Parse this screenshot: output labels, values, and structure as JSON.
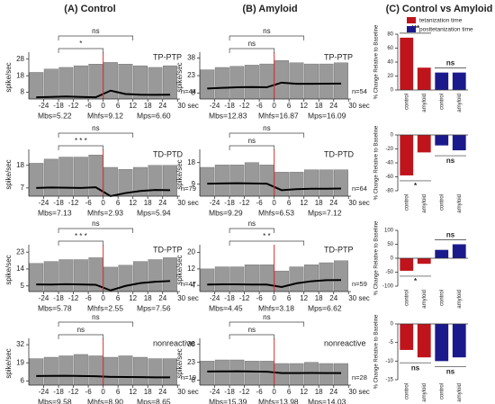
{
  "headers": [
    "(A) Control",
    "(B) Amyloid",
    "(C) Control vs Amyloid"
  ],
  "chart_data": [
    {
      "type": "histogram",
      "column": 0,
      "row": 0,
      "ylabel": "spike/sec",
      "label": "TP-PTP",
      "n": "n=44",
      "stats": [
        "Mbs=5.22",
        "Mhfs=9.12",
        "Mps=6.60"
      ],
      "bins": [
        -30,
        -24,
        -18,
        -12,
        -6,
        0,
        6,
        12,
        18,
        24,
        30
      ],
      "values": [
        20,
        22,
        23,
        24,
        25,
        26,
        25,
        24,
        23,
        24
      ],
      "mean": [
        5,
        5.2,
        5.5,
        5.2,
        5,
        9,
        7,
        6.6,
        6.5,
        6.6
      ],
      "event_x": 0,
      "xlim": [
        -30,
        31
      ],
      "ylim": [
        4,
        30
      ],
      "yticks": [
        8,
        18,
        28
      ],
      "xticks": [
        -24,
        -18,
        -12,
        -6,
        0,
        6,
        12,
        18,
        24,
        {
          "value": 30,
          "label": "30 sec"
        }
      ],
      "brackets": [
        {
          "label": "ns",
          "x": [
            -18,
            12
          ]
        },
        {
          "label": "*",
          "x": [
            -18,
            0
          ]
        }
      ]
    },
    {
      "type": "histogram",
      "column": 0,
      "row": 1,
      "ylabel": "spike/sec",
      "label": "TD-PTD",
      "n": "n=79",
      "stats": [
        "Mbs=7.13",
        "Mhfs=2.93",
        "Mps=5.94"
      ],
      "bins": [
        -30,
        -24,
        -18,
        -12,
        -6,
        0,
        6,
        12,
        18,
        24,
        30
      ],
      "values": [
        19,
        21,
        22,
        22,
        23,
        17,
        16,
        17,
        18,
        18
      ],
      "mean": [
        7,
        7.2,
        7.1,
        7,
        7.3,
        3,
        4.5,
        5.5,
        6,
        5.9
      ],
      "event_x": 0,
      "xlim": [
        -30,
        31
      ],
      "ylim": [
        3,
        24
      ],
      "yticks": [
        7,
        18
      ],
      "xticks": [
        -24,
        -18,
        -12,
        -6,
        0,
        6,
        12,
        18,
        24,
        {
          "value": 30,
          "label": "30 sec"
        }
      ],
      "brackets": [
        {
          "label": "ns",
          "x": [
            -18,
            12
          ]
        },
        {
          "label": "* * *",
          "x": [
            -18,
            0
          ]
        }
      ]
    },
    {
      "type": "histogram",
      "column": 0,
      "row": 2,
      "ylabel": "spike/sec",
      "label": "TD-PTP",
      "n": "n=47",
      "stats": [
        "Mbs=5.78",
        "Mhfs=2.55",
        "Mps=7.56"
      ],
      "bins": [
        -30,
        -24,
        -18,
        -12,
        -6,
        0,
        6,
        12,
        18,
        24,
        30
      ],
      "values": [
        17,
        18,
        19,
        19,
        20,
        15,
        16,
        18,
        19,
        20
      ],
      "mean": [
        5.8,
        5.7,
        5.9,
        5.8,
        5.6,
        2.6,
        5,
        6.5,
        7.2,
        7.6
      ],
      "event_x": 0,
      "xlim": [
        -30,
        31
      ],
      "ylim": [
        2,
        25
      ],
      "yticks": [
        5,
        14,
        23
      ],
      "xticks": [
        -24,
        -18,
        -12,
        -6,
        0,
        6,
        12,
        18,
        24,
        {
          "value": 30,
          "label": "30 sec"
        }
      ],
      "brackets": [
        {
          "label": "ns",
          "x": [
            -18,
            12
          ]
        },
        {
          "label": "* * *",
          "x": [
            -18,
            0
          ]
        }
      ]
    },
    {
      "type": "histogram",
      "column": 0,
      "row": 3,
      "ylabel": "spike/sec",
      "label": "nonreactive",
      "n": "n=19",
      "stats": [
        "Mbs=9.58",
        "Mhfs=8.90",
        "Mps=8.65"
      ],
      "bins": [
        -30,
        -24,
        -18,
        -12,
        -6,
        0,
        6,
        12,
        18,
        24,
        30
      ],
      "values": [
        22,
        23,
        24,
        25,
        24,
        23,
        24,
        23,
        22,
        22
      ],
      "mean": [
        9.5,
        9.6,
        9.7,
        9.5,
        9.4,
        8.9,
        8.8,
        8.7,
        8.6,
        8.6
      ],
      "event_x": 0,
      "xlim": [
        -30,
        31
      ],
      "ylim": [
        3,
        34
      ],
      "yticks": [
        6,
        19,
        32
      ],
      "xticks": [
        -24,
        -18,
        -12,
        -6,
        0,
        6,
        12,
        18,
        24,
        {
          "value": 30,
          "label": "30 sec"
        }
      ],
      "brackets": [
        {
          "label": "ns",
          "x": [
            -18,
            12
          ]
        },
        {
          "label": "ns",
          "x": [
            -18,
            0
          ]
        }
      ]
    },
    {
      "type": "histogram",
      "column": 1,
      "row": 0,
      "ylabel": "spike/sec",
      "label": "TP-PTP",
      "n": "n=54",
      "stats": [
        "Mbs=12.83",
        "Mhfs=16.87",
        "Mps=16.09"
      ],
      "bins": [
        -30,
        -24,
        -18,
        -12,
        -6,
        0,
        6,
        12,
        18,
        24,
        30
      ],
      "values": [
        28,
        30,
        31,
        32,
        33,
        36,
        34,
        33,
        33,
        34
      ],
      "mean": [
        12,
        12.5,
        13,
        13.2,
        13,
        17,
        16,
        16,
        16.1,
        16.2
      ],
      "event_x": 0,
      "xlim": [
        -30,
        31
      ],
      "ylim": [
        3,
        40
      ],
      "yticks": [
        8,
        23,
        38
      ],
      "xticks": [
        -24,
        -18,
        -12,
        -6,
        0,
        6,
        12,
        18,
        24,
        {
          "value": 30,
          "label": "30 sec"
        }
      ],
      "brackets": [
        {
          "label": "ns",
          "x": [
            -18,
            12
          ]
        },
        {
          "label": "ns",
          "x": [
            -18,
            0
          ]
        }
      ]
    },
    {
      "type": "histogram",
      "column": 1,
      "row": 1,
      "ylabel": "spike/sec",
      "label": "TD-PTD",
      "n": "n=64",
      "stats": [
        "Mbs=9.29",
        "Mhfs=6.53",
        "Mps=7.12"
      ],
      "bins": [
        -30,
        -24,
        -18,
        -12,
        -6,
        0,
        6,
        12,
        18,
        24,
        30
      ],
      "values": [
        16,
        17,
        17,
        18,
        17,
        14,
        14,
        15,
        15,
        15
      ],
      "mean": [
        9.2,
        9.3,
        9.4,
        9.3,
        9.2,
        6.5,
        6.9,
        7.1,
        7.1,
        7.2
      ],
      "event_x": 0,
      "xlim": [
        -30,
        31
      ],
      "ylim": [
        4,
        22
      ],
      "yticks": [
        9,
        18
      ],
      "xticks": [
        -24,
        -18,
        -12,
        -6,
        0,
        6,
        12,
        18,
        24,
        {
          "value": 30,
          "label": "30 sec"
        }
      ],
      "brackets": [
        {
          "label": "ns",
          "x": [
            -18,
            12
          ]
        },
        {
          "label": "ns",
          "x": [
            -18,
            0
          ]
        }
      ]
    },
    {
      "type": "histogram",
      "column": 1,
      "row": 2,
      "ylabel": "spike/sec",
      "label": "TD-PTP",
      "n": "n=59",
      "stats": [
        "Mbs=4.45",
        "Mhfs=3.18",
        "Mps=6.62"
      ],
      "bins": [
        -30,
        -24,
        -18,
        -12,
        -6,
        0,
        6,
        12,
        18,
        24,
        30
      ],
      "values": [
        12,
        13,
        13,
        14,
        14,
        11,
        13,
        14,
        15,
        16
      ],
      "mean": [
        4.4,
        4.5,
        4.5,
        4.4,
        4.4,
        3.2,
        5,
        6,
        6.5,
        6.6
      ],
      "event_x": 0,
      "xlim": [
        -30,
        31
      ],
      "ylim": [
        1,
        22
      ],
      "yticks": [
        4,
        12,
        20
      ],
      "xticks": [
        -24,
        -18,
        -12,
        -6,
        0,
        6,
        12,
        18,
        24,
        {
          "value": 30,
          "label": "30 sec"
        }
      ],
      "brackets": [
        {
          "label": "ns",
          "x": [
            -18,
            0
          ]
        },
        {
          "label": "* *",
          "x": [
            -18,
            12
          ]
        }
      ]
    },
    {
      "type": "histogram",
      "column": 1,
      "row": 3,
      "ylabel": "spike/sec",
      "label": "nonreactive",
      "n": "n=28",
      "stats": [
        "Mbs=15.39",
        "Mhfs=13.98",
        "Mps=14.03"
      ],
      "bins": [
        -30,
        -24,
        -18,
        -12,
        -6,
        0,
        6,
        12,
        18,
        24,
        30
      ],
      "values": [
        24,
        25,
        25,
        24,
        24,
        22,
        22,
        23,
        22,
        22
      ],
      "mean": [
        15.3,
        15.4,
        15.5,
        15.3,
        15.2,
        14,
        14,
        14.1,
        14,
        14
      ],
      "event_x": 0,
      "xlim": [
        -30,
        31
      ],
      "ylim": [
        4,
        40
      ],
      "yticks": [
        8,
        23,
        38
      ],
      "xticks": [
        -24,
        -18,
        -12,
        -6,
        0,
        6,
        12,
        18,
        24,
        {
          "value": 30,
          "label": "30 sec"
        }
      ],
      "brackets": [
        {
          "label": "ns",
          "x": [
            -18,
            12
          ]
        },
        {
          "label": "ns",
          "x": [
            -18,
            0
          ]
        }
      ]
    },
    {
      "type": "bar",
      "row": 0,
      "ylabel": "% Change Relative to Baseline",
      "legend": "top",
      "categories": [
        "control",
        "amyloid",
        "control",
        "amyloid"
      ],
      "series": [
        {
          "name": "tetanization time",
          "color": "#c0141c",
          "values": [
            75,
            32,
            null,
            null
          ]
        },
        {
          "name": "posttetanization time",
          "color": "#1a1a8c",
          "values": [
            null,
            null,
            25,
            25
          ]
        }
      ],
      "ylim": [
        0,
        80
      ],
      "yticks": [
        0,
        20,
        40,
        60,
        80
      ],
      "annotations": [
        {
          "label": "***",
          "x": [
            0,
            1
          ]
        },
        {
          "label": "ns",
          "x": [
            2,
            3
          ]
        }
      ]
    },
    {
      "type": "bar",
      "row": 1,
      "ylabel": "% Change Relative to Baseline",
      "categories": [
        "control",
        "amyloid",
        "control",
        "amyloid"
      ],
      "series": [
        {
          "name": "tetanization time",
          "color": "#c0141c",
          "values": [
            -58,
            -25,
            null,
            null
          ]
        },
        {
          "name": "posttetanization time",
          "color": "#1a1a8c",
          "values": [
            null,
            null,
            -15,
            -22
          ]
        }
      ],
      "ylim": [
        -80,
        0
      ],
      "yticks": [
        -80,
        -60,
        -40,
        -20,
        0
      ],
      "annotations": [
        {
          "label": "*",
          "x": [
            0,
            1
          ]
        },
        {
          "label": "ns",
          "x": [
            2,
            3
          ]
        }
      ]
    },
    {
      "type": "bar",
      "row": 2,
      "ylabel": "% Change Relative to Baseline",
      "categories": [
        "control",
        "amyloid",
        "control",
        "amyloid"
      ],
      "series": [
        {
          "name": "tetanization time",
          "color": "#c0141c",
          "values": [
            -45,
            -20,
            null,
            null
          ]
        },
        {
          "name": "posttetanization time",
          "color": "#1a1a8c",
          "values": [
            null,
            null,
            30,
            50
          ]
        }
      ],
      "ylim": [
        -100,
        100
      ],
      "yticks": [
        -100,
        -50,
        0,
        50,
        100
      ],
      "annotations": [
        {
          "label": "*",
          "x": [
            0,
            1
          ]
        },
        {
          "label": "ns",
          "x": [
            2,
            3
          ]
        }
      ]
    },
    {
      "type": "bar",
      "row": 3,
      "ylabel": "% Change Relative to Baseline",
      "categories": [
        "control",
        "amyloid",
        "control",
        "amyloid"
      ],
      "series": [
        {
          "name": "tetanization time",
          "color": "#c0141c",
          "values": [
            -7,
            -9,
            null,
            null
          ]
        },
        {
          "name": "posttetanization time",
          "color": "#1a1a8c",
          "values": [
            null,
            null,
            -10,
            -9
          ]
        }
      ],
      "ylim": [
        -15,
        0
      ],
      "yticks": [
        -15,
        -10,
        -5,
        0
      ],
      "annotations": [
        {
          "label": "ns",
          "x": [
            0,
            1
          ]
        },
        {
          "label": "ns",
          "x": [
            2,
            3
          ]
        }
      ]
    }
  ]
}
